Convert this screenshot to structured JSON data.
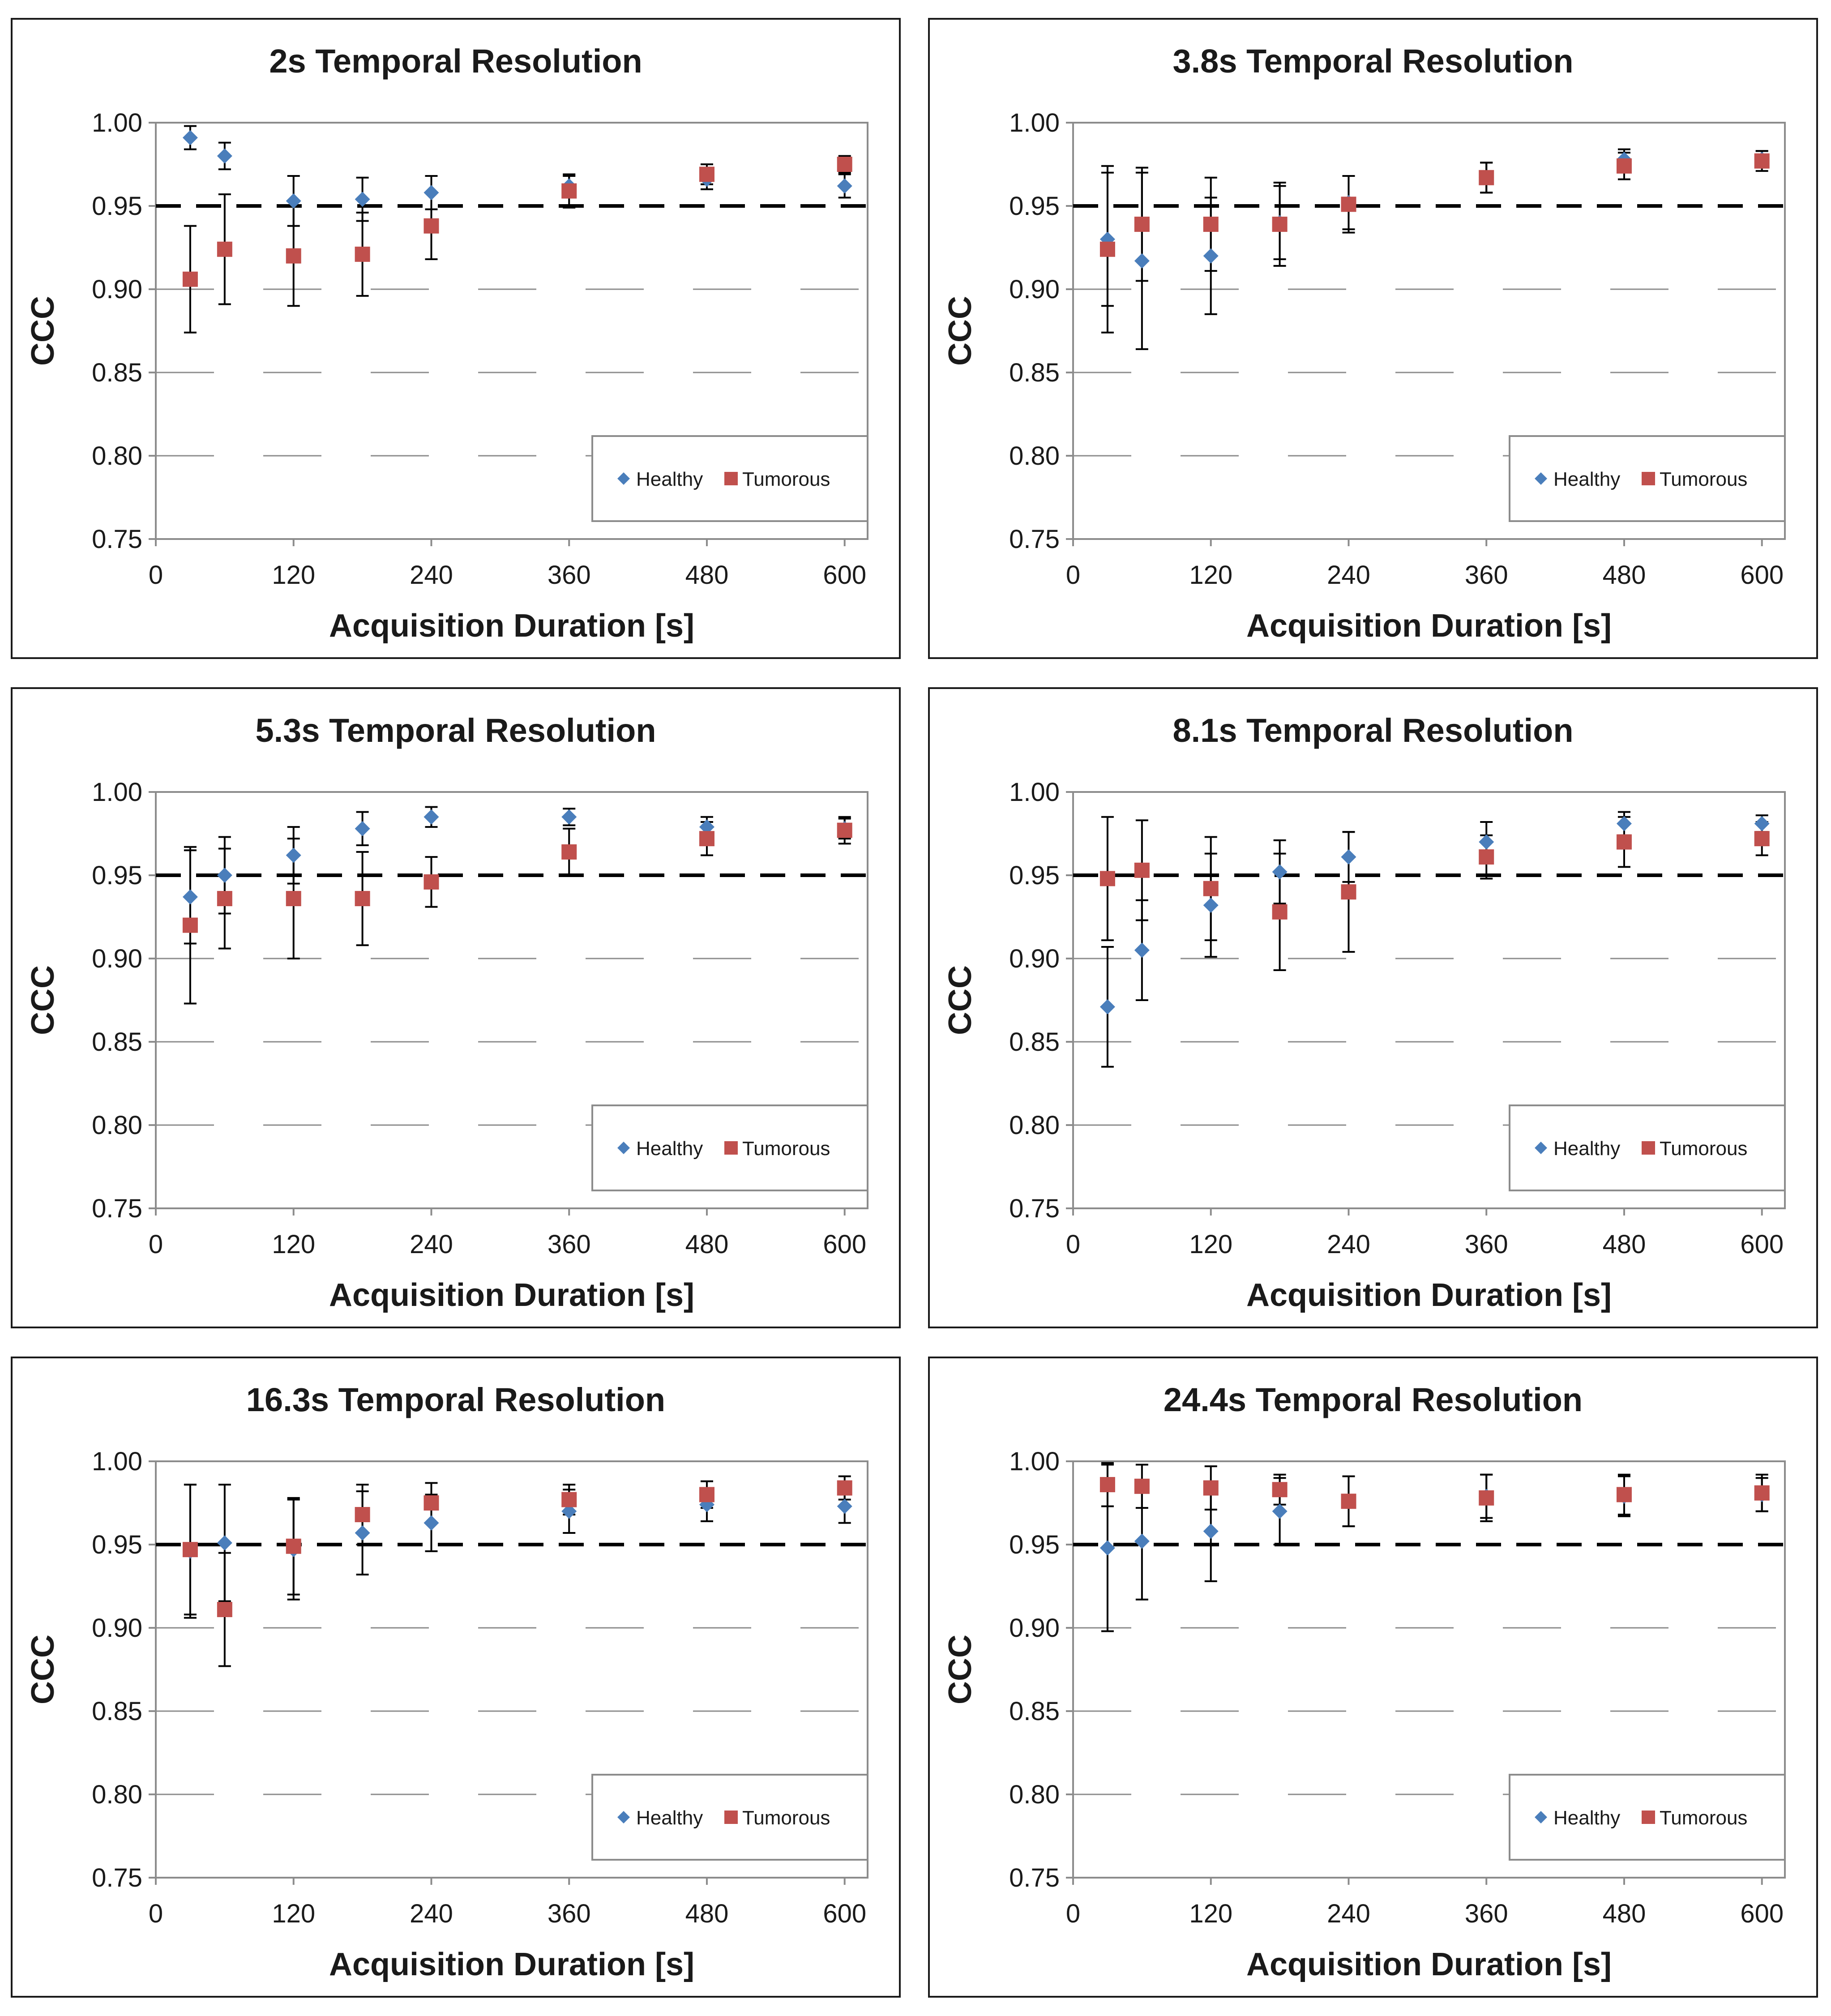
{
  "chart_data": [
    {
      "type": "scatter",
      "title": "2s Temporal Resolution",
      "xlabel": "Acquisition Duration [s]",
      "ylabel": "CCC",
      "xlim": [
        0,
        620
      ],
      "ylim": [
        0.75,
        1.0
      ],
      "xticks": [
        0,
        120,
        240,
        360,
        480,
        600
      ],
      "xtick_labels": [
        "0",
        "120",
        "240",
        "360",
        "480",
        "600"
      ],
      "yticks": [
        0.75,
        0.8,
        0.85,
        0.9,
        0.95,
        1.0
      ],
      "ytick_labels": [
        "0.75",
        "0.80",
        "0.85",
        "0.90",
        "0.95",
        "1.00"
      ],
      "threshold": 0.95,
      "legend": [
        "Healthy",
        "Tumorous"
      ],
      "x": [
        30,
        60,
        120,
        180,
        240,
        360,
        480,
        600
      ],
      "series": [
        {
          "name": "Healthy",
          "color": "#4a7ebb",
          "marker": "diamond",
          "values": [
            0.991,
            0.98,
            0.953,
            0.954,
            0.958,
            0.962,
            0.966,
            0.962
          ],
          "err": [
            0.007,
            0.008,
            0.015,
            0.013,
            0.01,
            0.006,
            0.006,
            0.007
          ]
        },
        {
          "name": "Tumorous",
          "color": "#c0504d",
          "marker": "square",
          "values": [
            0.906,
            0.924,
            0.92,
            0.921,
            0.938,
            0.959,
            0.969,
            0.975
          ],
          "err": [
            0.032,
            0.033,
            0.03,
            0.025,
            0.02,
            0.01,
            0.006,
            0.005
          ]
        }
      ]
    },
    {
      "type": "scatter",
      "title": "3.8s Temporal Resolution",
      "xlabel": "Acquisition Duration [s]",
      "ylabel": "CCC",
      "xlim": [
        0,
        620
      ],
      "ylim": [
        0.75,
        1.0
      ],
      "xticks": [
        0,
        120,
        240,
        360,
        480,
        600
      ],
      "xtick_labels": [
        "0",
        "120",
        "240",
        "360",
        "480",
        "600"
      ],
      "yticks": [
        0.75,
        0.8,
        0.85,
        0.9,
        0.95,
        1.0
      ],
      "ytick_labels": [
        "0.75",
        "0.80",
        "0.85",
        "0.90",
        "0.95",
        "1.00"
      ],
      "threshold": 0.95,
      "legend": [
        "Healthy",
        "Tumorous"
      ],
      "x": [
        30,
        60,
        120,
        180,
        240,
        360,
        480,
        600
      ],
      "series": [
        {
          "name": "Healthy",
          "color": "#4a7ebb",
          "marker": "diamond",
          "values": [
            0.93,
            0.917,
            0.92,
            0.94,
            0.952,
            0.967,
            0.978,
            0.978
          ],
          "err": [
            0.04,
            0.053,
            0.035,
            0.022,
            0.016,
            0.009,
            0.006,
            0.005
          ]
        },
        {
          "name": "Tumorous",
          "color": "#c0504d",
          "marker": "square",
          "values": [
            0.924,
            0.939,
            0.939,
            0.939,
            0.951,
            0.967,
            0.974,
            0.977
          ],
          "err": [
            0.05,
            0.034,
            0.028,
            0.025,
            0.017,
            0.009,
            0.008,
            0.006
          ]
        }
      ]
    },
    {
      "type": "scatter",
      "title": "5.3s Temporal Resolution",
      "xlabel": "Acquisition Duration [s]",
      "ylabel": "CCC",
      "xlim": [
        0,
        620
      ],
      "ylim": [
        0.75,
        1.0
      ],
      "xticks": [
        0,
        120,
        240,
        360,
        480,
        600
      ],
      "xtick_labels": [
        "0",
        "120",
        "240",
        "360",
        "480",
        "600"
      ],
      "yticks": [
        0.75,
        0.8,
        0.85,
        0.9,
        0.95,
        1.0
      ],
      "ytick_labels": [
        "0.75",
        "0.80",
        "0.85",
        "0.90",
        "0.95",
        "1.00"
      ],
      "threshold": 0.95,
      "legend": [
        "Healthy",
        "Tumorous"
      ],
      "x": [
        30,
        60,
        120,
        180,
        240,
        360,
        480,
        600
      ],
      "series": [
        {
          "name": "Healthy",
          "color": "#4a7ebb",
          "marker": "diamond",
          "values": [
            0.937,
            0.95,
            0.962,
            0.978,
            0.985,
            0.985,
            0.979,
            0.978
          ],
          "err": [
            0.028,
            0.023,
            0.017,
            0.01,
            0.006,
            0.005,
            0.006,
            0.006
          ]
        },
        {
          "name": "Tumorous",
          "color": "#c0504d",
          "marker": "square",
          "values": [
            0.92,
            0.936,
            0.936,
            0.936,
            0.946,
            0.964,
            0.972,
            0.977
          ],
          "err": [
            0.047,
            0.03,
            0.036,
            0.028,
            0.015,
            0.014,
            0.01,
            0.008
          ]
        }
      ]
    },
    {
      "type": "scatter",
      "title": "8.1s Temporal Resolution",
      "xlabel": "Acquisition Duration [s]",
      "ylabel": "CCC",
      "xlim": [
        0,
        620
      ],
      "ylim": [
        0.75,
        1.0
      ],
      "xticks": [
        0,
        120,
        240,
        360,
        480,
        600
      ],
      "xtick_labels": [
        "0",
        "120",
        "240",
        "360",
        "480",
        "600"
      ],
      "yticks": [
        0.75,
        0.8,
        0.85,
        0.9,
        0.95,
        1.0
      ],
      "ytick_labels": [
        "0.75",
        "0.80",
        "0.85",
        "0.90",
        "0.95",
        "1.00"
      ],
      "threshold": 0.95,
      "legend": [
        "Healthy",
        "Tumorous"
      ],
      "x": [
        30,
        60,
        120,
        180,
        240,
        360,
        480,
        600
      ],
      "series": [
        {
          "name": "Healthy",
          "color": "#4a7ebb",
          "marker": "diamond",
          "values": [
            0.871,
            0.905,
            0.932,
            0.952,
            0.961,
            0.97,
            0.981,
            0.981
          ],
          "err": [
            0.036,
            0.03,
            0.031,
            0.019,
            0.015,
            0.012,
            0.007,
            0.005
          ]
        },
        {
          "name": "Tumorous",
          "color": "#c0504d",
          "marker": "square",
          "values": [
            0.948,
            0.953,
            0.942,
            0.928,
            0.94,
            0.961,
            0.97,
            0.972
          ],
          "err": [
            0.037,
            0.03,
            0.031,
            0.035,
            0.036,
            0.013,
            0.015,
            0.01
          ]
        }
      ]
    },
    {
      "type": "scatter",
      "title": "16.3s Temporal Resolution",
      "xlabel": "Acquisition Duration [s]",
      "ylabel": "CCC",
      "xlim": [
        0,
        620
      ],
      "ylim": [
        0.75,
        1.0
      ],
      "xticks": [
        0,
        120,
        240,
        360,
        480,
        600
      ],
      "xtick_labels": [
        "0",
        "120",
        "240",
        "360",
        "480",
        "600"
      ],
      "yticks": [
        0.75,
        0.8,
        0.85,
        0.9,
        0.95,
        1.0
      ],
      "ytick_labels": [
        "0.75",
        "0.80",
        "0.85",
        "0.90",
        "0.95",
        "1.00"
      ],
      "threshold": 0.95,
      "legend": [
        "Healthy",
        "Tumorous"
      ],
      "x": [
        30,
        60,
        120,
        180,
        240,
        360,
        480,
        600
      ],
      "series": [
        {
          "name": "Healthy",
          "color": "#4a7ebb",
          "marker": "diamond",
          "values": [
            0.946,
            0.951,
            0.947,
            0.957,
            0.963,
            0.97,
            0.974,
            0.973
          ],
          "err": [
            0.04,
            0.035,
            0.03,
            0.025,
            0.017,
            0.013,
            0.01,
            0.01
          ]
        },
        {
          "name": "Tumorous",
          "color": "#c0504d",
          "marker": "square",
          "values": [
            0.947,
            0.911,
            0.949,
            0.968,
            0.975,
            0.977,
            0.98,
            0.984
          ],
          "err": [
            0.039,
            0.034,
            0.029,
            0.018,
            0.012,
            0.009,
            0.008,
            0.007
          ]
        }
      ]
    },
    {
      "type": "scatter",
      "title": "24.4s Temporal Resolution",
      "xlabel": "Acquisition Duration [s]",
      "ylabel": "CCC",
      "xlim": [
        0,
        620
      ],
      "ylim": [
        0.75,
        1.0
      ],
      "xticks": [
        0,
        120,
        240,
        360,
        480,
        600
      ],
      "xtick_labels": [
        "0",
        "120",
        "240",
        "360",
        "480",
        "600"
      ],
      "yticks": [
        0.75,
        0.8,
        0.85,
        0.9,
        0.95,
        1.0
      ],
      "ytick_labels": [
        "0.75",
        "0.80",
        "0.85",
        "0.90",
        "0.95",
        "1.00"
      ],
      "threshold": 0.95,
      "legend": [
        "Healthy",
        "Tumorous"
      ],
      "x": [
        30,
        60,
        120,
        180,
        240,
        360,
        480,
        600
      ],
      "series": [
        {
          "name": "Healthy",
          "color": "#4a7ebb",
          "marker": "diamond",
          "values": [
            0.948,
            0.952,
            0.958,
            0.97,
            0.976,
            0.979,
            0.979,
            0.98
          ],
          "err": [
            0.05,
            0.035,
            0.03,
            0.02,
            0.015,
            0.013,
            0.012,
            0.01
          ]
        },
        {
          "name": "Tumorous",
          "color": "#c0504d",
          "marker": "square",
          "values": [
            0.986,
            0.985,
            0.984,
            0.983,
            0.976,
            0.978,
            0.98,
            0.981
          ],
          "err": [
            0.013,
            0.013,
            0.013,
            0.009,
            0.015,
            0.014,
            0.012,
            0.011
          ]
        }
      ]
    }
  ]
}
